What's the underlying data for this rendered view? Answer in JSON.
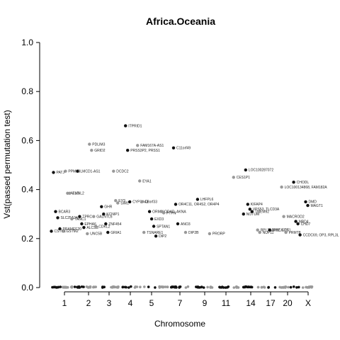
{
  "chart_data": {
    "type": "scatter",
    "title": "Africa.Oceania",
    "xlabel": "Chromosome",
    "ylabel": "Vst(passed permutation test)",
    "ylim": [
      0,
      1
    ],
    "yticks": [
      "0.0",
      "0.2",
      "0.4",
      "0.6",
      "0.8",
      "1.0"
    ],
    "xticks": [
      "1",
      "2",
      "3",
      "4",
      "5",
      "7",
      "9",
      "11",
      "14",
      "17",
      "20",
      "X"
    ],
    "colors": {
      "odd": "#111111",
      "even": "#999999"
    },
    "points": [
      {
        "label": "PATJ",
        "x": 1,
        "y": 0.47,
        "color": "odd"
      },
      {
        "label": "PPM1B",
        "x": 2,
        "y": 0.475,
        "color": "even"
      },
      {
        "label": "LMCD1-AS1",
        "x": 3,
        "y": 0.475,
        "color": "odd"
      },
      {
        "label": "ALLC",
        "x": 2,
        "y": 0.385,
        "color": "even"
      },
      {
        "label": "FMNL2",
        "x": 2,
        "y": 0.385,
        "color": "even"
      },
      {
        "label": "BCAR3",
        "x": 1,
        "y": 0.31,
        "color": "odd"
      },
      {
        "label": "SLC25A24",
        "x": 1,
        "y": 0.285,
        "color": "odd"
      },
      {
        "label": "PRAMEF20",
        "x": 1,
        "y": 0.24,
        "color": "odd"
      },
      {
        "label": "CSTN1",
        "x": 1,
        "y": 0.23,
        "color": "odd"
      },
      {
        "label": "TANC1",
        "x": 2,
        "y": 0.28,
        "color": "even"
      },
      {
        "label": "GSTM2",
        "x": 2,
        "y": 0.23,
        "color": "even"
      },
      {
        "label": "TPRC",
        "x": 3,
        "y": 0.29,
        "color": "odd"
      },
      {
        "label": "EPHA6",
        "x": 3,
        "y": 0.26,
        "color": "odd"
      },
      {
        "label": "ALCSB",
        "x": 3,
        "y": 0.245,
        "color": "odd"
      },
      {
        "label": "PDLIM3",
        "x": 4,
        "y": 0.585,
        "color": "even"
      },
      {
        "label": "GRID2",
        "x": 4,
        "y": 0.56,
        "color": "even"
      },
      {
        "label": "GALNTL6",
        "x": 4,
        "y": 0.29,
        "color": "even"
      },
      {
        "label": "CDKL2",
        "x": 4,
        "y": 0.25,
        "color": "even"
      },
      {
        "label": "UNC5B",
        "x": 4,
        "y": 0.22,
        "color": "even"
      },
      {
        "label": "GHR",
        "x": 5,
        "y": 0.33,
        "color": "odd"
      },
      {
        "label": "KCNIP1",
        "x": 5,
        "y": 0.3,
        "color": "odd"
      },
      {
        "label": "ZNF454",
        "x": 5,
        "y": 0.26,
        "color": "odd"
      },
      {
        "label": "GRIA1",
        "x": 5,
        "y": 0.225,
        "color": "odd"
      },
      {
        "label": "DCDC2",
        "x": 6,
        "y": 0.475,
        "color": "even"
      },
      {
        "label": "EYS",
        "x": 6,
        "y": 0.355,
        "color": "even"
      },
      {
        "label": "SIM1",
        "x": 6,
        "y": 0.345,
        "color": "even"
      },
      {
        "label": "ITPRID1",
        "x": 7,
        "y": 0.66,
        "color": "odd"
      },
      {
        "label": "PRSS3P2, PRSS1",
        "x": 7,
        "y": 0.56,
        "color": "odd"
      },
      {
        "label": "FAM167A-AS1",
        "x": 8,
        "y": 0.58,
        "color": "even"
      },
      {
        "label": "EYA1",
        "x": 8,
        "y": 0.435,
        "color": "even"
      },
      {
        "label": "CYP3A43",
        "x": 7,
        "y": 0.35,
        "color": "odd"
      },
      {
        "label": "C8orf33",
        "x": 8,
        "y": 0.35,
        "color": "even"
      },
      {
        "label": "ORMDL",
        "x": 9,
        "y": 0.31,
        "color": "odd"
      },
      {
        "label": "EXD3",
        "x": 9,
        "y": 0.28,
        "color": "odd"
      },
      {
        "label": "SPTAN1",
        "x": 9,
        "y": 0.25,
        "color": "odd"
      },
      {
        "label": "TSNARE1",
        "x": 8,
        "y": 0.225,
        "color": "even"
      },
      {
        "label": "DIP2",
        "x": 9,
        "y": 0.21,
        "color": "odd"
      },
      {
        "label": "C11orf49",
        "x": 11,
        "y": 0.57,
        "color": "odd"
      },
      {
        "label": "OR4C11, OR4S2, OR4P4",
        "x": 11,
        "y": 0.34,
        "color": "odd"
      },
      {
        "label": "ODAD, AKNA",
        "x": 10,
        "y": 0.31,
        "color": "even"
      },
      {
        "label": "PTPN",
        "x": 10,
        "y": 0.305,
        "color": "even"
      },
      {
        "label": "ANO3",
        "x": 11,
        "y": 0.26,
        "color": "odd"
      },
      {
        "label": "LHFPL6",
        "x": 13,
        "y": 0.36,
        "color": "odd"
      },
      {
        "label": "DIP2B",
        "x": 12,
        "y": 0.225,
        "color": "even"
      },
      {
        "label": "PRORP",
        "x": 14,
        "y": 0.22,
        "color": "even"
      },
      {
        "label": "LOC100287072",
        "x": 17,
        "y": 0.48,
        "color": "odd"
      },
      {
        "label": "CES1P1",
        "x": 16,
        "y": 0.45,
        "color": "even"
      },
      {
        "label": "CHODL",
        "x": 21,
        "y": 0.43,
        "color": "odd"
      },
      {
        "label": "LOC100134868, FAM182A",
        "x": 20,
        "y": 0.41,
        "color": "even"
      },
      {
        "label": "KIFAP4",
        "x": 17,
        "y": 0.34,
        "color": "odd"
      },
      {
        "label": "VPS53, TLCD3A",
        "x": 17,
        "y": 0.32,
        "color": "odd"
      },
      {
        "label": "TMEM92",
        "x": 17,
        "y": 0.31,
        "color": "odd"
      },
      {
        "label": "NOTUM",
        "x": 17,
        "y": 0.3,
        "color": "odd"
      },
      {
        "label": "MACROD2",
        "x": 20,
        "y": 0.29,
        "color": "even"
      },
      {
        "label": "DMD",
        "x": 22,
        "y": 0.35,
        "color": "odd"
      },
      {
        "label": "MAGT1",
        "x": 22,
        "y": 0.335,
        "color": "odd"
      },
      {
        "label": "MBD4",
        "x": 21,
        "y": 0.27,
        "color": "odd"
      },
      {
        "label": "CHD7",
        "x": 21,
        "y": 0.26,
        "color": "odd"
      },
      {
        "label": "RPL23AP82, ETS1",
        "x": 18,
        "y": 0.235,
        "color": "even"
      },
      {
        "label": "BIRC6-DT",
        "x": 19,
        "y": 0.235,
        "color": "odd"
      },
      {
        "label": "PRMT8",
        "x": 20,
        "y": 0.225,
        "color": "even"
      },
      {
        "label": "NUP11",
        "x": 18,
        "y": 0.225,
        "color": "even"
      },
      {
        "label": "CCDC69, OP3, RPL3L",
        "x": 21,
        "y": 0.215,
        "color": "odd"
      }
    ]
  }
}
